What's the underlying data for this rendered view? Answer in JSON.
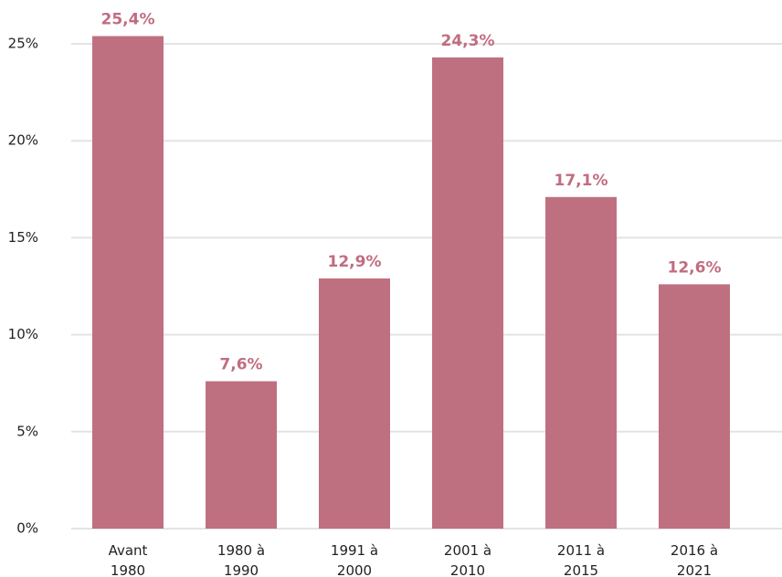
{
  "chart_data": {
    "type": "bar",
    "categories": [
      [
        "Avant",
        "1980"
      ],
      [
        "1980 à",
        "1990"
      ],
      [
        "1991 à",
        "2000"
      ],
      [
        "2001 à",
        "2010"
      ],
      [
        "2011 à",
        "2015"
      ],
      [
        "2016 à",
        "2021"
      ]
    ],
    "values": [
      25.4,
      7.6,
      12.9,
      24.3,
      17.1,
      12.6
    ],
    "value_labels": [
      "25,4%",
      "7,6%",
      "12,9%",
      "24,3%",
      "17,1%",
      "12,6%"
    ],
    "color": "#bf7080",
    "ylim": [
      0,
      25
    ],
    "yticks": [
      {
        "value": 0,
        "label": "0%"
      },
      {
        "value": 5,
        "label": "5%"
      },
      {
        "value": 10,
        "label": "10%"
      },
      {
        "value": 15,
        "label": "15%"
      },
      {
        "value": 20,
        "label": "20%"
      },
      {
        "value": 25,
        "label": "25%"
      }
    ],
    "grid": true
  }
}
